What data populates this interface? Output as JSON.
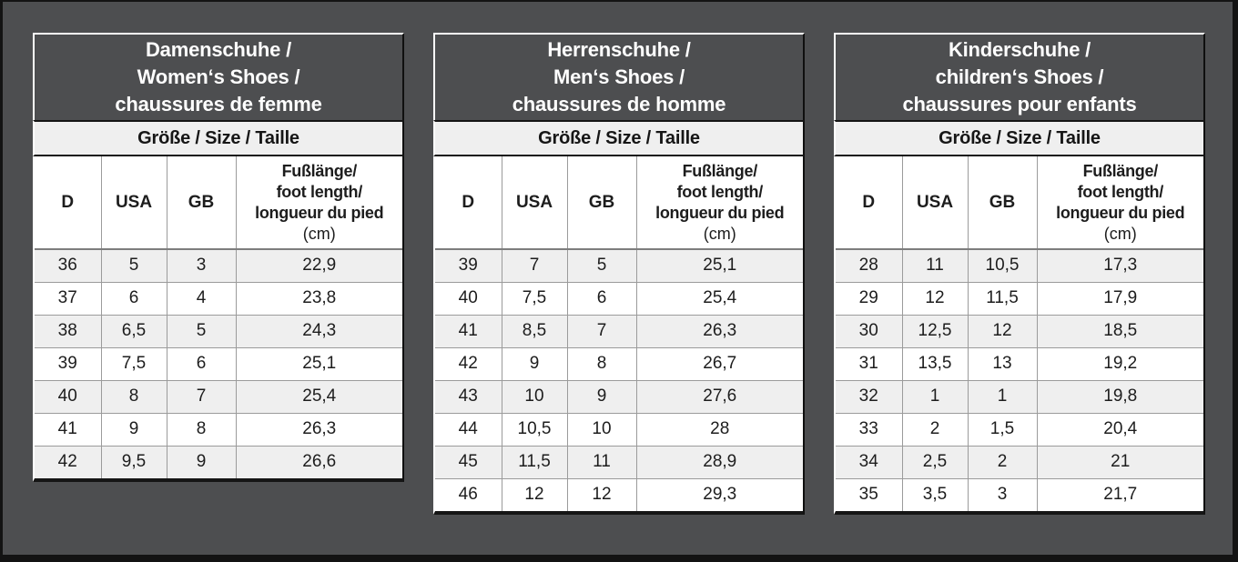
{
  "colors": {
    "page_background": "#4d4e50",
    "frame": "#131313",
    "title_text": "#ffffff",
    "band_light": "#efefef",
    "band_white": "#ffffff",
    "grid_line": "#9b9b9b",
    "black_rule": "#151515"
  },
  "tables": [
    {
      "id": "women",
      "title_lines": [
        "Damenschuhe /",
        "Women‘s Shoes /",
        "chaussures de femme"
      ],
      "size_header": "Größe / Size / Taille",
      "columns": [
        "D",
        "USA",
        "GB"
      ],
      "foot_length_lines": [
        "Fußlänge/",
        "foot length/",
        "longueur du pied"
      ],
      "foot_length_unit": "(cm)",
      "rows": [
        [
          "36",
          "5",
          "3",
          "22,9"
        ],
        [
          "37",
          "6",
          "4",
          "23,8"
        ],
        [
          "38",
          "6,5",
          "5",
          "24,3"
        ],
        [
          "39",
          "7,5",
          "6",
          "25,1"
        ],
        [
          "40",
          "8",
          "7",
          "25,4"
        ],
        [
          "41",
          "9",
          "8",
          "26,3"
        ],
        [
          "42",
          "9,5",
          "9",
          "26,6"
        ]
      ]
    },
    {
      "id": "men",
      "title_lines": [
        "Herrenschuhe /",
        "Men‘s Shoes /",
        "chaussures de homme"
      ],
      "size_header": "Größe / Size / Taille",
      "columns": [
        "D",
        "USA",
        "GB"
      ],
      "foot_length_lines": [
        "Fußlänge/",
        "foot length/",
        "longueur du pied"
      ],
      "foot_length_unit": "(cm)",
      "rows": [
        [
          "39",
          "7",
          "5",
          "25,1"
        ],
        [
          "40",
          "7,5",
          "6",
          "25,4"
        ],
        [
          "41",
          "8,5",
          "7",
          "26,3"
        ],
        [
          "42",
          "9",
          "8",
          "26,7"
        ],
        [
          "43",
          "10",
          "9",
          "27,6"
        ],
        [
          "44",
          "10,5",
          "10",
          "28"
        ],
        [
          "45",
          "11,5",
          "11",
          "28,9"
        ],
        [
          "46",
          "12",
          "12",
          "29,3"
        ]
      ]
    },
    {
      "id": "children",
      "title_lines": [
        "Kinderschuhe /",
        "children‘s Shoes /",
        "chaussures pour enfants"
      ],
      "size_header": "Größe / Size / Taille",
      "columns": [
        "D",
        "USA",
        "GB"
      ],
      "foot_length_lines": [
        "Fußlänge/",
        "foot length/",
        "longueur du pied"
      ],
      "foot_length_unit": "(cm)",
      "rows": [
        [
          "28",
          "11",
          "10,5",
          "17,3"
        ],
        [
          "29",
          "12",
          "11,5",
          "17,9"
        ],
        [
          "30",
          "12,5",
          "12",
          "18,5"
        ],
        [
          "31",
          "13,5",
          "13",
          "19,2"
        ],
        [
          "32",
          "1",
          "1",
          "19,8"
        ],
        [
          "33",
          "2",
          "1,5",
          "20,4"
        ],
        [
          "34",
          "2,5",
          "2",
          "21"
        ],
        [
          "35",
          "3,5",
          "3",
          "21,7"
        ]
      ]
    }
  ]
}
